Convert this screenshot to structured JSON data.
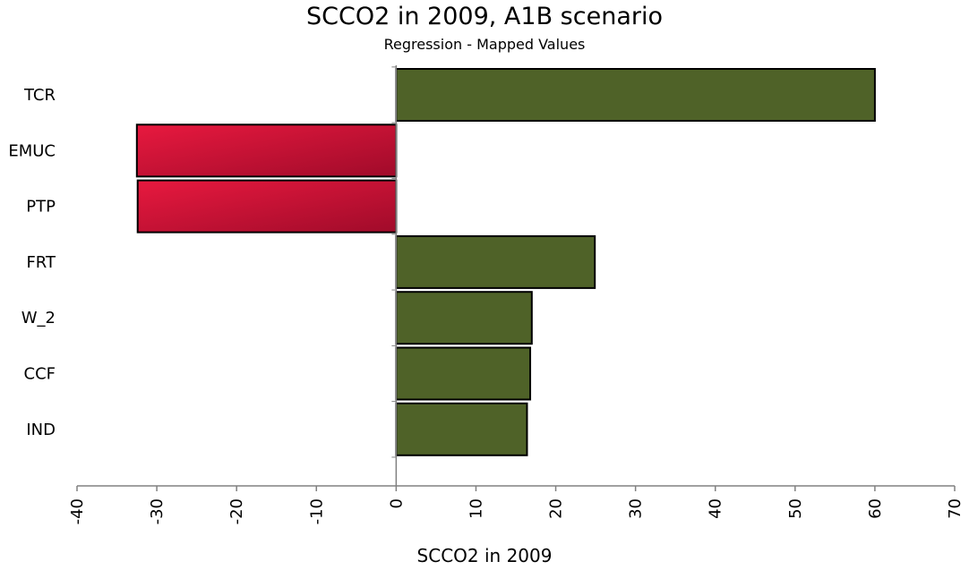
{
  "chart_data": {
    "type": "bar",
    "orientation": "horizontal",
    "title": "SCCO2 in 2009, A1B scenario",
    "subtitle": "Regression - Mapped Values",
    "xlabel": "SCCO2 in 2009",
    "ylabel": "",
    "categories": [
      "TCR",
      "EMUC",
      "PTP",
      "FRT",
      "W_2",
      "CCF",
      "IND"
    ],
    "values": [
      60,
      -32.5,
      -32.4,
      24.9,
      17.0,
      16.8,
      16.4
    ],
    "xlim": [
      -40,
      70
    ],
    "xticks": [
      -40,
      -30,
      -20,
      -10,
      0,
      10,
      20,
      30,
      40,
      50,
      60,
      70
    ],
    "grid": false,
    "legend": "none",
    "colors": {
      "positive": "#4f6228",
      "negative_light": "#e8193f",
      "negative_dark": "#a00b2a",
      "axis": "#808080",
      "bar_edge": "#000000"
    }
  }
}
